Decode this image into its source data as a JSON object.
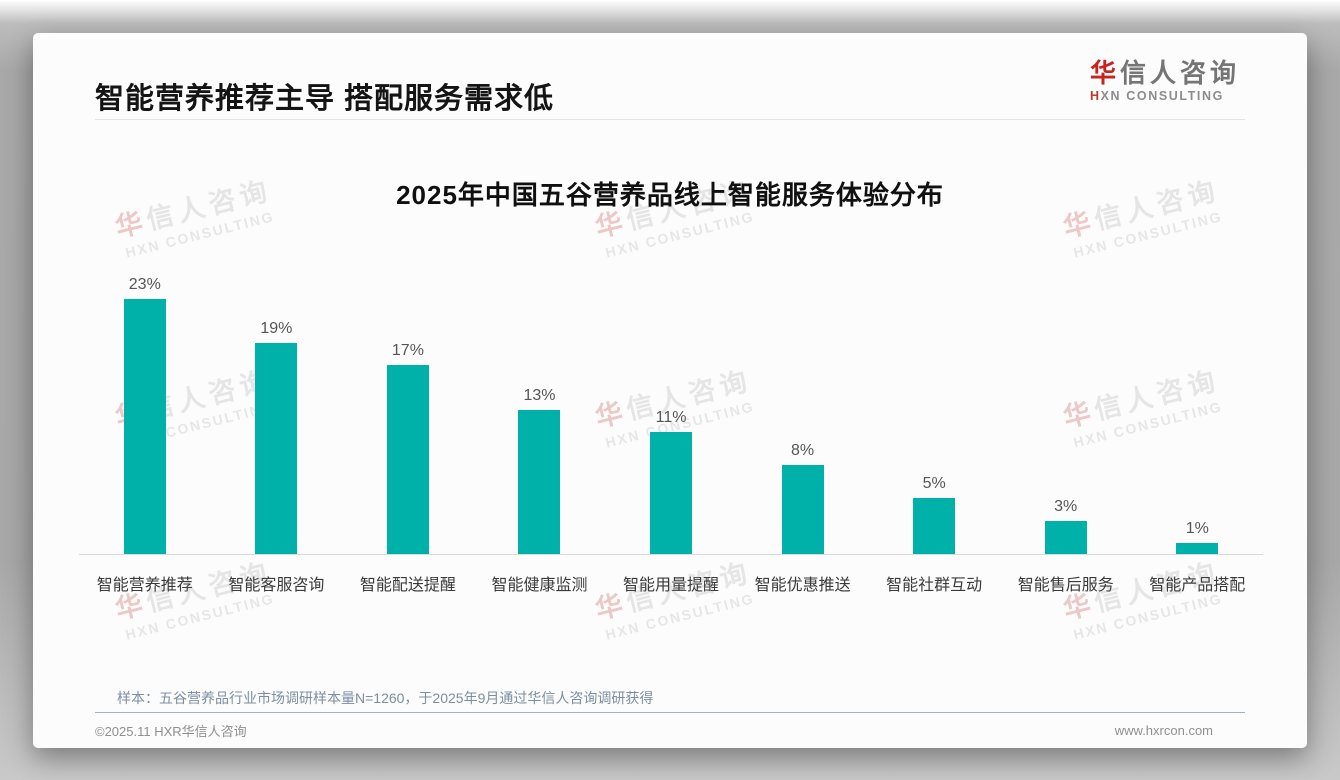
{
  "page": {
    "header": {
      "title": "智能营养推荐主导 搭配服务需求低",
      "logo": {
        "cn_first": "华",
        "cn_rest": "信人咨询",
        "en_first": "H",
        "en_rest": "XN CONSULTING"
      }
    },
    "watermark": {
      "cn_first": "华",
      "cn_rest": "信人咨询",
      "en": "HXN CONSULTING"
    },
    "footnote": "样本：五谷营养品行业市场调研样本量N=1260，于2025年9月通过华信人咨询调研获得",
    "footer": {
      "copyright": "©2025.11 HXR华信人咨询",
      "website": "www.hxrcon.com"
    }
  },
  "chart_data": {
    "type": "bar",
    "title": "2025年中国五谷营养品线上智能服务体验分布",
    "categories": [
      "智能营养推荐",
      "智能客服咨询",
      "智能配送提醒",
      "智能健康监测",
      "智能用量提醒",
      "智能优惠推送",
      "智能社群互动",
      "智能售后服务",
      "智能产品搭配"
    ],
    "values": [
      23,
      19,
      17,
      13,
      11,
      8,
      5,
      3,
      1
    ],
    "data_labels": [
      "23%",
      "19%",
      "17%",
      "13%",
      "11%",
      "8%",
      "5%",
      "3%",
      "1%"
    ],
    "unit": "%",
    "ylim": [
      0,
      25
    ],
    "grid": false,
    "legend": false,
    "bar_color": "#00b1a9",
    "accent_red": "#c8231e",
    "note_color": "#7b8ea3"
  }
}
